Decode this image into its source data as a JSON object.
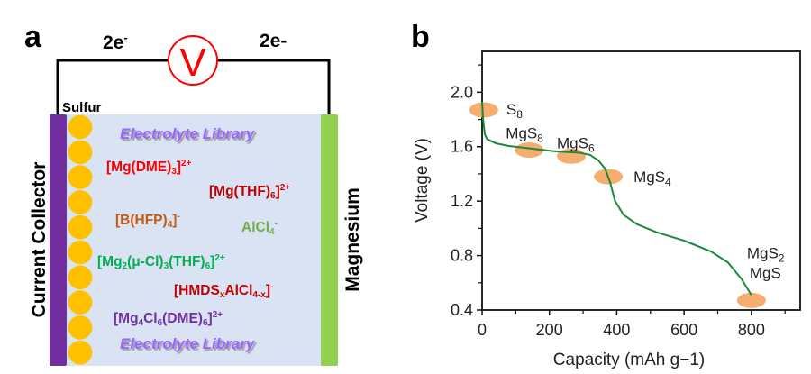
{
  "panel_a": {
    "label": "a",
    "electron_left": [
      "2e",
      "-"
    ],
    "electron_right": "2e-",
    "voltmeter_symbol": "V",
    "sulfur_label": "Sulfur",
    "current_collector_label": "Current Collector",
    "magnesium_label": "Magnesium",
    "electrolyte_library_top": "Electrolyte Library",
    "electrolyte_library_bottom": "Electrolyte Library",
    "sulfur_particle_count": 10,
    "species": [
      {
        "name": "mg-dme3",
        "color": "#ff0000",
        "parts": [
          {
            "t": "[Mg(DME)"
          },
          {
            "t": "3",
            "s": "sub"
          },
          {
            "t": "]"
          },
          {
            "t": "2+",
            "s": "sup"
          }
        ]
      },
      {
        "name": "mg-thf6",
        "color": "#c00000",
        "parts": [
          {
            "t": "[Mg(THF)"
          },
          {
            "t": "6",
            "s": "sub"
          },
          {
            "t": "]"
          },
          {
            "t": "2+",
            "s": "sup"
          }
        ]
      },
      {
        "name": "b-hfp4",
        "color": "#c55a11",
        "parts": [
          {
            "t": "[B(HFP)"
          },
          {
            "t": "4",
            "s": "sub"
          },
          {
            "t": "]"
          },
          {
            "t": "-",
            "s": "sup"
          }
        ]
      },
      {
        "name": "alcl4",
        "color": "#70ad47",
        "parts": [
          {
            "t": "AlCl"
          },
          {
            "t": "4",
            "s": "sub"
          },
          {
            "t": "-",
            "s": "sup"
          }
        ]
      },
      {
        "name": "mg2-cl3-thf6",
        "color": "#00b050",
        "parts": [
          {
            "t": "[Mg"
          },
          {
            "t": "2",
            "s": "sub"
          },
          {
            "t": "(μ-Cl)"
          },
          {
            "t": "3",
            "s": "sub"
          },
          {
            "t": "(THF)"
          },
          {
            "t": "6",
            "s": "sub"
          },
          {
            "t": "]"
          },
          {
            "t": "2+",
            "s": "sup"
          }
        ]
      },
      {
        "name": "hmds-alcl",
        "color": "#c00000",
        "parts": [
          {
            "t": "[HMDS"
          },
          {
            "t": "x",
            "s": "sub"
          },
          {
            "t": "AlCl"
          },
          {
            "t": "4-x",
            "s": "sub"
          },
          {
            "t": "]"
          },
          {
            "t": "-",
            "s": "sup"
          }
        ]
      },
      {
        "name": "mg4cl6-dme6",
        "color": "#7030a0",
        "parts": [
          {
            "t": "[Mg"
          },
          {
            "t": "4",
            "s": "sub"
          },
          {
            "t": "Cl"
          },
          {
            "t": "6",
            "s": "sub"
          },
          {
            "t": "(DME)"
          },
          {
            "t": "6",
            "s": "sub"
          },
          {
            "t": "]"
          },
          {
            "t": "2+",
            "s": "sup"
          }
        ]
      }
    ],
    "colors": {
      "collector": "#7030a0",
      "sulfur": "#ffc000",
      "electrolyte": "#dae3f3",
      "magnesium": "#92d050",
      "voltmeter": "#ff0000"
    }
  },
  "chart_data": {
    "panel_label": "b",
    "type": "line",
    "title": "",
    "xlabel": "Capacity (mAh g−1)",
    "ylabel": "Voltage (V)",
    "xlim": [
      0,
      945
    ],
    "ylim": [
      0.4,
      2.3
    ],
    "xticks": [
      0,
      200,
      400,
      600,
      800
    ],
    "xtick_labels": [
      "0",
      "200",
      "400",
      "600",
      "800"
    ],
    "x_minor_ticks": [
      100,
      300,
      500,
      700,
      900
    ],
    "yticks": [
      0.4,
      0.8,
      1.2,
      1.6,
      2.0
    ],
    "ytick_labels": [
      "0.4",
      "0.8",
      "1.2",
      "1.6",
      "2.0"
    ],
    "y_minor_ticks": [
      0.6,
      1.0,
      1.4,
      1.8,
      2.2
    ],
    "grid": false,
    "series": [
      {
        "name": "discharge",
        "color": "#1a8a3a",
        "x": [
          0,
          3,
          8,
          15,
          40,
          80,
          150,
          220,
          290,
          320,
          345,
          365,
          380,
          395,
          420,
          460,
          520,
          600,
          680,
          730,
          770,
          800
        ],
        "y": [
          1.93,
          1.8,
          1.69,
          1.655,
          1.625,
          1.605,
          1.585,
          1.565,
          1.555,
          1.54,
          1.5,
          1.44,
          1.34,
          1.2,
          1.1,
          1.03,
          0.97,
          0.91,
          0.83,
          0.75,
          0.63,
          0.51
        ]
      }
    ],
    "annotations": [
      {
        "x": 5,
        "y": 1.87,
        "label": [
          {
            "t": "S"
          },
          {
            "t": "8",
            "s": "sub"
          }
        ]
      },
      {
        "x": 140,
        "y": 1.575,
        "label": [
          {
            "t": "MgS"
          },
          {
            "t": "8",
            "s": "sub"
          }
        ]
      },
      {
        "x": 265,
        "y": 1.53,
        "label": [
          {
            "t": "MgS"
          },
          {
            "t": "6",
            "s": "sub"
          }
        ]
      },
      {
        "x": 375,
        "y": 1.38,
        "label": [
          {
            "t": "MgS"
          },
          {
            "t": "4",
            "s": "sub"
          }
        ]
      },
      {
        "x": 800,
        "y": 0.47,
        "label": [
          {
            "t": "MgS"
          },
          {
            "t": "2",
            "s": "sub"
          }
        ],
        "label2": [
          {
            "t": "MgS"
          }
        ]
      }
    ],
    "marker_color": "#f4a460"
  }
}
